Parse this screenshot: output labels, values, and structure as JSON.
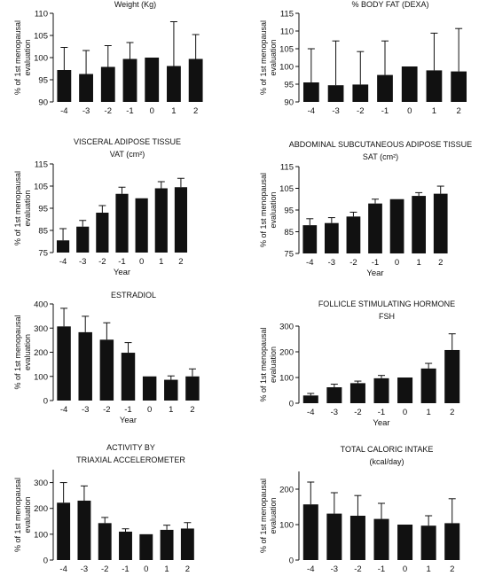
{
  "chart_data": [
    {
      "type": "bar",
      "title": "Weight (Kg)",
      "subtitle": "",
      "xlabel": "",
      "ylabel": "% of 1st menopausal evaluation",
      "categories": [
        "-4",
        "-3",
        "-2",
        "-1",
        "0",
        "1",
        "2"
      ],
      "values": [
        97.2,
        96.3,
        97.9,
        99.7,
        100,
        98.1,
        99.7
      ],
      "error_upper": [
        102.3,
        101.6,
        102.7,
        103.4,
        100,
        108.1,
        105.2
      ],
      "ylim": [
        90,
        110
      ],
      "yticks": [
        90,
        95,
        100,
        105,
        110
      ],
      "color": "#111111"
    },
    {
      "type": "bar",
      "title": "% BODY FAT (DEXA)",
      "subtitle": "",
      "xlabel": "",
      "ylabel": "% of 1st menopausal evaluation",
      "categories": [
        "-4",
        "-3",
        "-2",
        "-1",
        "0",
        "1",
        "2"
      ],
      "values": [
        95.5,
        94.7,
        94.9,
        97.6,
        100,
        98.9,
        98.6
      ],
      "error_upper": [
        105.0,
        107.2,
        104.2,
        107.2,
        100,
        109.4,
        110.7
      ],
      "ylim": [
        90,
        115
      ],
      "yticks": [
        90,
        95,
        100,
        105,
        110,
        115
      ],
      "color": "#111111"
    },
    {
      "type": "bar",
      "title": "VISCERAL ADIPOSE TISSUE",
      "subtitle": "VAT (cm²)",
      "xlabel": "Year",
      "ylabel": "% of 1st menopausal evaluation",
      "categories": [
        "-4",
        "-3",
        "-2",
        "-1",
        "0",
        "1",
        "2"
      ],
      "values": [
        80.5,
        86.7,
        93.0,
        101.5,
        99.5,
        104.0,
        104.5
      ],
      "error_upper": [
        85.8,
        89.5,
        96.2,
        104.5,
        99.5,
        107.0,
        108.5
      ],
      "ylim": [
        75,
        115
      ],
      "yticks": [
        75,
        85,
        95,
        105,
        115
      ],
      "color": "#111111"
    },
    {
      "type": "bar",
      "title": "ABDOMINAL SUBCUTANEOUS ADIPOSE TISSUE",
      "subtitle": "SAT (cm²)",
      "xlabel": "Year",
      "ylabel": "% of 1st menopausal evaluation",
      "categories": [
        "-4",
        "-3",
        "-2",
        "-1",
        "0",
        "1",
        "2"
      ],
      "values": [
        88.0,
        89.0,
        92.0,
        98.0,
        100,
        101.5,
        102.5
      ],
      "error_upper": [
        91.0,
        91.5,
        94.0,
        100.0,
        100,
        103.0,
        106.0
      ],
      "ylim": [
        75,
        115
      ],
      "yticks": [
        75,
        85,
        95,
        105,
        115
      ],
      "color": "#111111"
    },
    {
      "type": "bar",
      "title": "ESTRADIOL",
      "subtitle": "",
      "xlabel": "Year",
      "ylabel": "% of 1st menopausal evaluation",
      "categories": [
        "-4",
        "-3",
        "-2",
        "-1",
        "0",
        "1",
        "2"
      ],
      "values": [
        307,
        283,
        252,
        198,
        100,
        86,
        100
      ],
      "error_upper": [
        382,
        349,
        322,
        240,
        100,
        102,
        131
      ],
      "ylim": [
        0,
        400
      ],
      "yticks": [
        0,
        100,
        200,
        300,
        400
      ],
      "color": "#111111"
    },
    {
      "type": "bar",
      "title": "FOLLICLE STIMULATING HORMONE",
      "subtitle": "FSH",
      "xlabel": "Year",
      "ylabel": "% of 1st menopausal evaluation",
      "categories": [
        "-4",
        "-3",
        "-2",
        "-1",
        "0",
        "1",
        "2"
      ],
      "values": [
        30,
        62,
        78,
        97,
        100,
        135,
        207
      ],
      "error_upper": [
        38,
        74,
        86,
        108,
        100,
        155,
        270
      ],
      "ylim": [
        0,
        300
      ],
      "yticks": [
        0,
        100,
        200,
        300
      ],
      "color": "#111111"
    },
    {
      "type": "bar",
      "title": "ACTIVITY BY",
      "subtitle": "TRIAXIAL ACCELEROMETER",
      "xlabel": "Year",
      "ylabel": "% of 1st menopausal evaluation",
      "categories": [
        "-4",
        "-3",
        "-2",
        "-1",
        "0",
        "1",
        "2"
      ],
      "values": [
        222,
        230,
        143,
        110,
        100,
        117,
        122
      ],
      "error_upper": [
        300,
        287,
        165,
        121,
        100,
        135,
        145
      ],
      "ylim": [
        0,
        350
      ],
      "yticks": [
        0,
        100,
        200,
        300
      ],
      "color": "#111111"
    },
    {
      "type": "bar",
      "title": "TOTAL CALORIC INTAKE",
      "subtitle": "(kcal/day)",
      "xlabel": "Year",
      "ylabel": "% of 1st menopausal evaluation",
      "categories": [
        "-4",
        "-3",
        "-2",
        "-1",
        "0",
        "1",
        "2"
      ],
      "values": [
        157,
        131,
        125,
        116,
        100,
        97,
        104
      ],
      "error_upper": [
        220,
        190,
        182,
        160,
        100,
        125,
        173
      ],
      "ylim": [
        0,
        250
      ],
      "yticks": [
        0,
        100,
        200
      ],
      "color": "#111111"
    }
  ]
}
